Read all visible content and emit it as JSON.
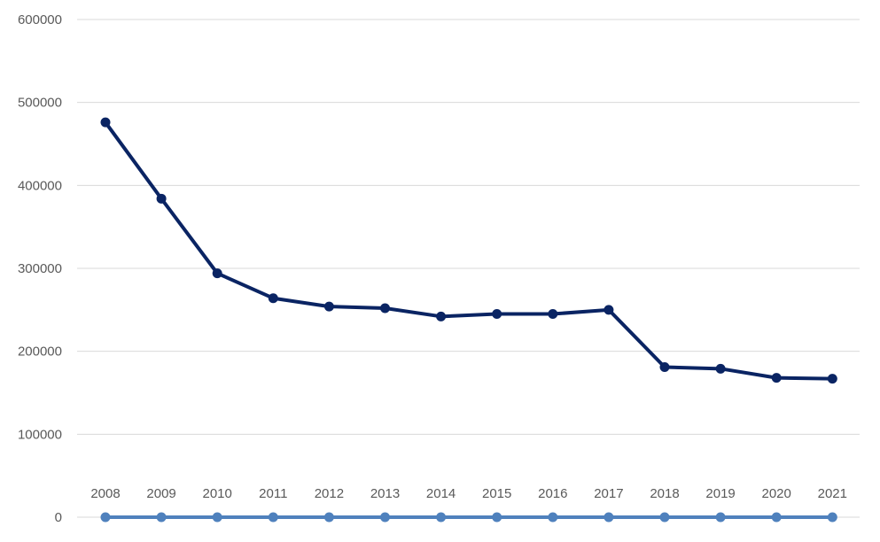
{
  "chart_data": {
    "type": "line",
    "categories": [
      "2008",
      "2009",
      "2010",
      "2011",
      "2012",
      "2013",
      "2014",
      "2015",
      "2016",
      "2017",
      "2018",
      "2019",
      "2020",
      "2021"
    ],
    "series": [
      {
        "color": "#0a2463",
        "values": [
          476000,
          384000,
          294000,
          264000,
          254000,
          252000,
          242000,
          245000,
          245000,
          250000,
          181000,
          179000,
          168000,
          167000
        ]
      },
      {
        "color": "#4f81bd",
        "values": [
          0,
          0,
          0,
          0,
          0,
          0,
          0,
          0,
          0,
          0,
          0,
          0,
          0,
          0
        ]
      }
    ],
    "y_ticks": [
      "0",
      "100000",
      "200000",
      "300000",
      "400000",
      "500000",
      "600000"
    ],
    "ylim": [
      0,
      600000
    ],
    "grid": true,
    "legend": "none",
    "title": "",
    "xlabel": "",
    "ylabel": ""
  }
}
